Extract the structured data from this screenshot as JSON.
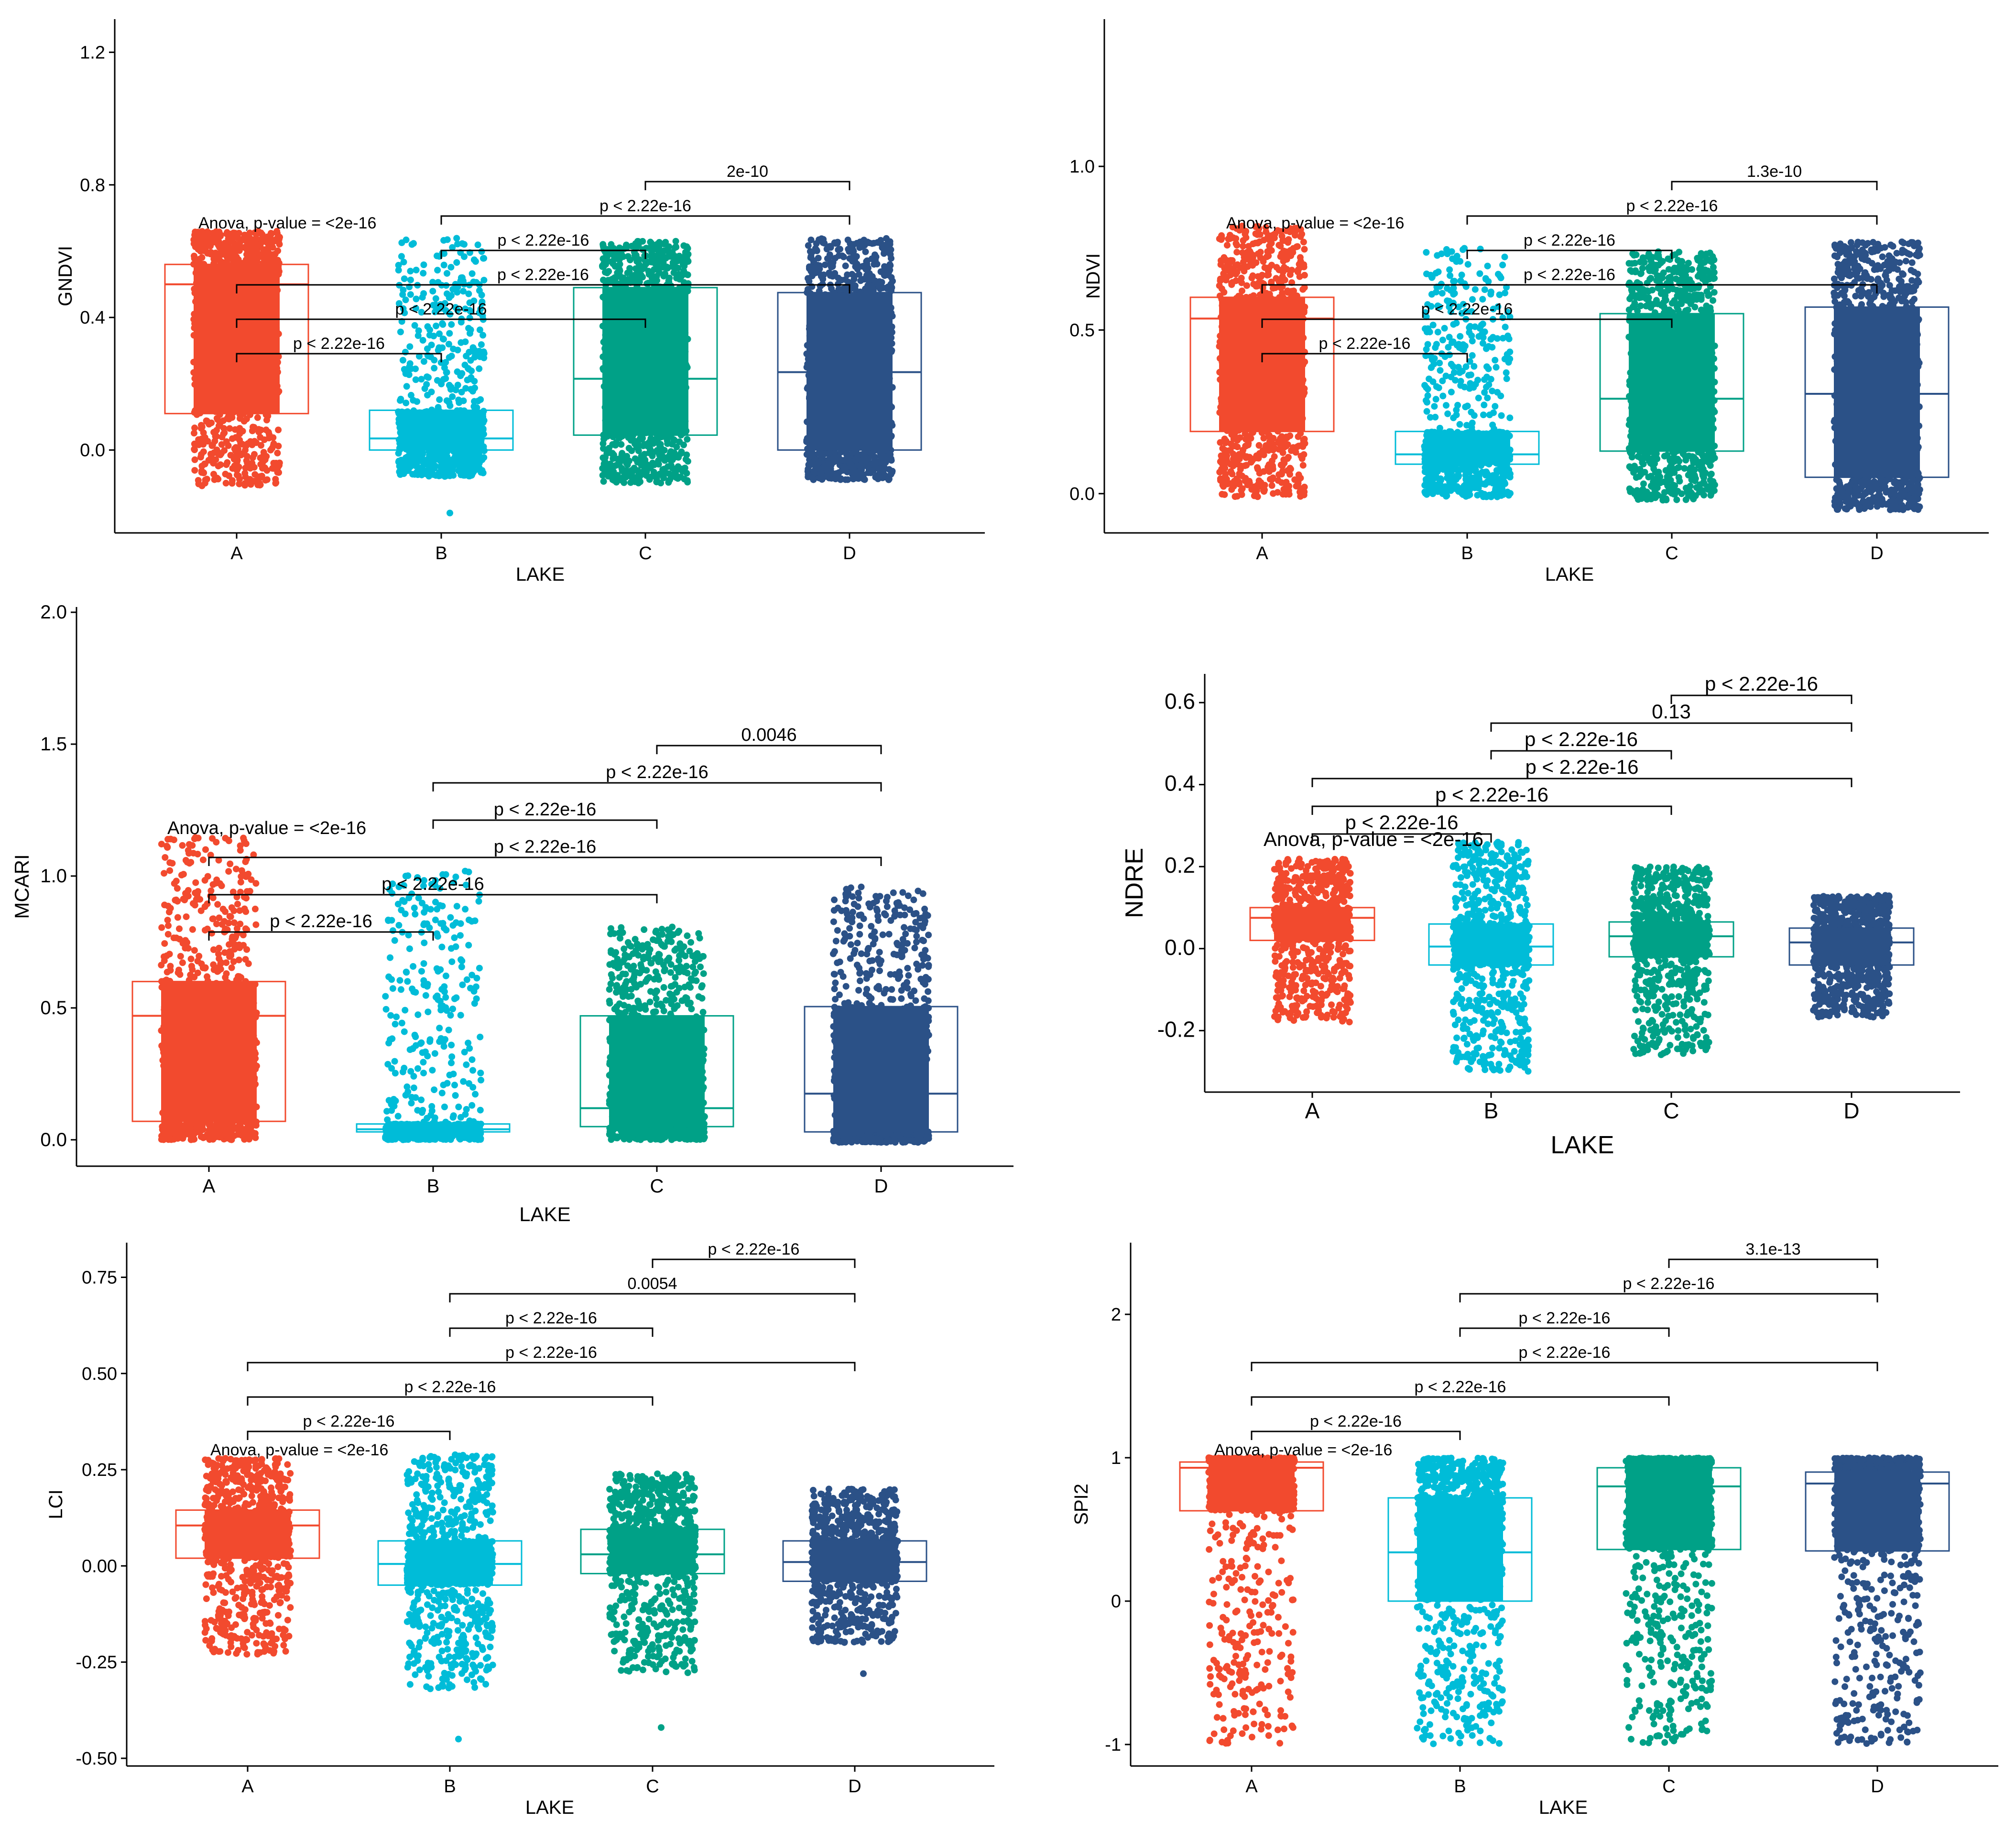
{
  "figure": {
    "x_axis_title": "LAKE",
    "lakes": [
      "A",
      "B",
      "C",
      "D"
    ],
    "colors": {
      "A": "#F24A2E",
      "B": "#00BCD8",
      "C": "#00A187",
      "D": "#2B5187"
    },
    "anova_label": "Anova, p-value = <2e-16"
  },
  "chart_data": [
    {
      "id": "gndvi",
      "type": "box",
      "title": "",
      "xlabel": "LAKE",
      "ylabel": "GNDVI",
      "categories": [
        "A",
        "B",
        "C",
        "D"
      ],
      "ylim": [
        -0.25,
        1.3
      ],
      "yticks": [
        0.0,
        0.4,
        0.8,
        1.2
      ],
      "ytick_labels": [
        "0.0",
        "0.4",
        "0.8",
        "1.2"
      ],
      "anova": "Anova, p-value = <2e-16",
      "boxes": [
        {
          "category": "A",
          "q1": 0.11,
          "median": 0.5,
          "q3": 0.56,
          "min": -0.11,
          "max": 0.66,
          "extra_low": 0.0
        },
        {
          "category": "B",
          "q1": 0.0,
          "median": 0.035,
          "q3": 0.12,
          "min": -0.08,
          "max": 0.64,
          "extra_low": -0.19
        },
        {
          "category": "C",
          "q1": 0.045,
          "median": 0.215,
          "q3": 0.49,
          "min": -0.1,
          "max": 0.63
        },
        {
          "category": "D",
          "q1": 0.0,
          "median": 0.235,
          "q3": 0.475,
          "min": -0.09,
          "max": 0.64
        }
      ],
      "comparisons": [
        {
          "from": "C",
          "to": "D",
          "label": "2e-10"
        },
        {
          "from": "B",
          "to": "D",
          "label": "p < 2.22e-16"
        },
        {
          "from": "B",
          "to": "C",
          "label": "p < 2.22e-16"
        },
        {
          "from": "A",
          "to": "D",
          "label": "p < 2.22e-16"
        },
        {
          "from": "A",
          "to": "C",
          "label": "p < 2.22e-16"
        },
        {
          "from": "A",
          "to": "B",
          "label": "p < 2.22e-16"
        }
      ]
    },
    {
      "id": "ndvi",
      "type": "box",
      "title": "",
      "xlabel": "LAKE",
      "ylabel": "NDVI",
      "categories": [
        "A",
        "B",
        "C",
        "D"
      ],
      "ylim": [
        -0.12,
        1.45
      ],
      "yticks": [
        0.0,
        0.5,
        1.0
      ],
      "ytick_labels": [
        "0.0",
        "0.5",
        "1.0"
      ],
      "anova": "Anova, p-value = <2e-16",
      "boxes": [
        {
          "category": "A",
          "q1": 0.19,
          "median": 0.535,
          "q3": 0.6,
          "min": -0.01,
          "max": 0.82
        },
        {
          "category": "B",
          "q1": 0.09,
          "median": 0.12,
          "q3": 0.19,
          "min": -0.01,
          "max": 0.75
        },
        {
          "category": "C",
          "q1": 0.13,
          "median": 0.29,
          "q3": 0.55,
          "min": -0.02,
          "max": 0.74
        },
        {
          "category": "D",
          "q1": 0.05,
          "median": 0.305,
          "q3": 0.57,
          "min": -0.05,
          "max": 0.77
        }
      ],
      "comparisons": [
        {
          "from": "C",
          "to": "D",
          "label": "1.3e-10"
        },
        {
          "from": "B",
          "to": "D",
          "label": "p < 2.22e-16"
        },
        {
          "from": "B",
          "to": "C",
          "label": "p < 2.22e-16"
        },
        {
          "from": "A",
          "to": "D",
          "label": "p < 2.22e-16"
        },
        {
          "from": "A",
          "to": "C",
          "label": "p < 2.22e-16"
        },
        {
          "from": "A",
          "to": "B",
          "label": "p < 2.22e-16"
        }
      ]
    },
    {
      "id": "mcari",
      "type": "box",
      "title": "",
      "xlabel": "LAKE",
      "ylabel": "MCARI",
      "categories": [
        "A",
        "B",
        "C",
        "D"
      ],
      "ylim": [
        -0.1,
        2.02
      ],
      "yticks": [
        0.0,
        0.5,
        1.0,
        1.5,
        2.0
      ],
      "ytick_labels": [
        "0.0",
        "0.5",
        "1.0",
        "1.5",
        "2.0"
      ],
      "anova": "Anova, p-value = <2e-16",
      "boxes": [
        {
          "category": "A",
          "q1": 0.07,
          "median": 0.47,
          "q3": 0.6,
          "min": 0.0,
          "max": 1.15
        },
        {
          "category": "B",
          "q1": 0.03,
          "median": 0.04,
          "q3": 0.06,
          "min": 0.0,
          "max": 1.02
        },
        {
          "category": "C",
          "q1": 0.05,
          "median": 0.12,
          "q3": 0.47,
          "min": 0.0,
          "max": 0.81
        },
        {
          "category": "D",
          "q1": 0.03,
          "median": 0.175,
          "q3": 0.505,
          "min": -0.01,
          "max": 0.96
        }
      ],
      "comparisons": [
        {
          "from": "C",
          "to": "D",
          "label": "0.0046"
        },
        {
          "from": "B",
          "to": "D",
          "label": "p < 2.22e-16"
        },
        {
          "from": "B",
          "to": "C",
          "label": "p < 2.22e-16"
        },
        {
          "from": "A",
          "to": "D",
          "label": "p < 2.22e-16"
        },
        {
          "from": "A",
          "to": "C",
          "label": "p < 2.22e-16"
        },
        {
          "from": "A",
          "to": "B",
          "label": "p < 2.22e-16"
        }
      ]
    },
    {
      "id": "ndre",
      "type": "box",
      "title": "",
      "xlabel": "LAKE",
      "ylabel": "NDRE",
      "categories": [
        "A",
        "B",
        "C",
        "D"
      ],
      "ylim": [
        -0.35,
        0.67
      ],
      "yticks": [
        -0.2,
        0.0,
        0.2,
        0.4,
        0.6
      ],
      "ytick_labels": [
        "-0.2",
        "0.0",
        "0.2",
        "0.4",
        "0.6"
      ],
      "anova": "Anova, p-value = <2e-16",
      "boxes": [
        {
          "category": "A",
          "q1": 0.02,
          "median": 0.075,
          "q3": 0.1,
          "min": -0.18,
          "max": 0.22
        },
        {
          "category": "B",
          "q1": -0.04,
          "median": 0.005,
          "q3": 0.06,
          "min": -0.3,
          "max": 0.26
        },
        {
          "category": "C",
          "q1": -0.02,
          "median": 0.03,
          "q3": 0.065,
          "min": -0.26,
          "max": 0.2
        },
        {
          "category": "D",
          "q1": -0.04,
          "median": 0.015,
          "q3": 0.05,
          "min": -0.17,
          "max": 0.13
        }
      ],
      "comparisons": [
        {
          "from": "C",
          "to": "D",
          "label": "p < 2.22e-16"
        },
        {
          "from": "B",
          "to": "D",
          "label": "0.13"
        },
        {
          "from": "B",
          "to": "C",
          "label": "p < 2.22e-16"
        },
        {
          "from": "A",
          "to": "D",
          "label": "p < 2.22e-16"
        },
        {
          "from": "A",
          "to": "C",
          "label": "p < 2.22e-16"
        },
        {
          "from": "A",
          "to": "B",
          "label": "p < 2.22e-16"
        }
      ]
    },
    {
      "id": "lci",
      "type": "box",
      "title": "",
      "xlabel": "LAKE",
      "ylabel": "LCI",
      "categories": [
        "A",
        "B",
        "C",
        "D"
      ],
      "ylim": [
        -0.52,
        0.84
      ],
      "yticks": [
        -0.5,
        -0.25,
        0.0,
        0.25,
        0.5,
        0.75
      ],
      "ytick_labels": [
        "-0.50",
        "-0.25",
        "0.00",
        "0.25",
        "0.50",
        "0.75"
      ],
      "anova": "Anova, p-value = <2e-16",
      "boxes": [
        {
          "category": "A",
          "q1": 0.02,
          "median": 0.105,
          "q3": 0.145,
          "min": -0.23,
          "max": 0.28
        },
        {
          "category": "B",
          "q1": -0.05,
          "median": 0.005,
          "q3": 0.065,
          "min": -0.32,
          "max": 0.29,
          "extra_low": -0.45
        },
        {
          "category": "C",
          "q1": -0.02,
          "median": 0.03,
          "q3": 0.095,
          "min": -0.28,
          "max": 0.24,
          "extra_low": -0.42
        },
        {
          "category": "D",
          "q1": -0.04,
          "median": 0.01,
          "q3": 0.065,
          "min": -0.2,
          "max": 0.2,
          "extra_low": -0.28
        }
      ],
      "comparisons": [
        {
          "from": "C",
          "to": "D",
          "label": "p < 2.22e-16"
        },
        {
          "from": "B",
          "to": "D",
          "label": "0.0054"
        },
        {
          "from": "B",
          "to": "C",
          "label": "p < 2.22e-16"
        },
        {
          "from": "A",
          "to": "D",
          "label": "p < 2.22e-16"
        },
        {
          "from": "A",
          "to": "C",
          "label": "p < 2.22e-16"
        },
        {
          "from": "A",
          "to": "B",
          "label": "p < 2.22e-16"
        }
      ]
    },
    {
      "id": "spi2",
      "type": "box",
      "title": "",
      "xlabel": "LAKE",
      "ylabel": "SPI2",
      "categories": [
        "A",
        "B",
        "C",
        "D"
      ],
      "ylim": [
        -1.15,
        2.5
      ],
      "yticks": [
        -1,
        0,
        1,
        2
      ],
      "ytick_labels": [
        "-1",
        "0",
        "1",
        "2"
      ],
      "anova": "Anova, p-value = <2e-16",
      "boxes": [
        {
          "category": "A",
          "q1": 0.63,
          "median": 0.93,
          "q3": 0.97,
          "min": -1.0,
          "max": 1.0
        },
        {
          "category": "B",
          "q1": 0.0,
          "median": 0.34,
          "q3": 0.72,
          "min": -1.0,
          "max": 1.0
        },
        {
          "category": "C",
          "q1": 0.36,
          "median": 0.8,
          "q3": 0.93,
          "min": -1.0,
          "max": 1.0
        },
        {
          "category": "D",
          "q1": 0.35,
          "median": 0.82,
          "q3": 0.9,
          "min": -1.0,
          "max": 1.0
        }
      ],
      "comparisons": [
        {
          "from": "C",
          "to": "D",
          "label": "3.1e-13"
        },
        {
          "from": "B",
          "to": "D",
          "label": "p < 2.22e-16"
        },
        {
          "from": "B",
          "to": "C",
          "label": "p < 2.22e-16"
        },
        {
          "from": "A",
          "to": "D",
          "label": "p < 2.22e-16"
        },
        {
          "from": "A",
          "to": "C",
          "label": "p < 2.22e-16"
        },
        {
          "from": "A",
          "to": "B",
          "label": "p < 2.22e-16"
        }
      ]
    }
  ]
}
